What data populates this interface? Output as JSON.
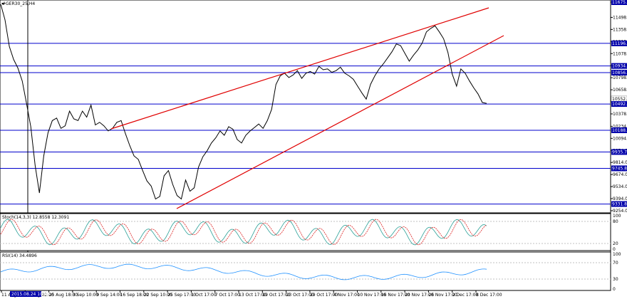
{
  "window": {
    "symbol_label": "#GER30_25,H4"
  },
  "indicators": {
    "stoch_label": "Stoch(14,3,3) 12.8558 12.3091",
    "stoch_levels": [
      "100",
      "80",
      "20",
      "0"
    ],
    "rsi_label": "RSI(14) 34.4896",
    "rsi_levels": [
      "100",
      "70",
      "30",
      "0"
    ]
  },
  "crosshair": {
    "time_label": "2015.08.24 10:00"
  },
  "price_axis": {
    "ticks": [
      "11675.0",
      "11498.0",
      "11358.0",
      "11218.0",
      "11078.0",
      "10938.0",
      "10798.0",
      "10658.0",
      "10518.0",
      "10378.0",
      "10234.0",
      "10094.0",
      "9954.0",
      "9814.0",
      "9674.0",
      "9534.0",
      "9394.0",
      "9254.0"
    ],
    "level_tags": [
      {
        "text": "11675.0",
        "price": 11675.0
      },
      {
        "text": "11196.6",
        "price": 11196.6
      },
      {
        "text": "10934.4",
        "price": 10934.4
      },
      {
        "text": "10856.7",
        "price": 10856.7
      },
      {
        "text": "10552.5",
        "price": 10552.5
      },
      {
        "text": "10492.7",
        "price": 10492.7
      },
      {
        "text": "10188.2",
        "price": 10188.2
      },
      {
        "text": "9935.7",
        "price": 9935.7
      },
      {
        "text": "9745.8",
        "price": 9745.8
      },
      {
        "text": "9331.8",
        "price": 9331.8
      }
    ]
  },
  "time_axis": {
    "ticks": [
      "11 Aug 2015",
      "19 Aug 02:00",
      "25 Aug 18:00",
      "3 Sep 10:00",
      "9 Sep 14:00",
      "16 Sep 18:00",
      "22 Sep 10:00",
      "25 Sep 17:00",
      "1 Oct 17:00",
      "7 Oct 17:00",
      "13 Oct 17:00",
      "19 Oct 17:00",
      "23 Oct 17:00",
      "29 Oct 17:00",
      "4 Nov 17:00",
      "10 Nov 17:00",
      "16 Nov 17:00",
      "20 Nov 17:00",
      "26 Nov 17:00",
      "2 Dec 17:00",
      "8 Dec 17:00"
    ]
  },
  "chart_data": {
    "type": "line",
    "series": [
      {
        "values": [
          11650,
          11470,
          11160,
          11010,
          10910,
          10760,
          10500,
          10230,
          9780,
          9460,
          9890,
          10160,
          10300,
          10330,
          10210,
          10240,
          10410,
          10320,
          10300,
          10410,
          10340,
          10480,
          10250,
          10280,
          10240,
          10180,
          10210,
          10280,
          10300,
          10150,
          10010,
          9890,
          9850,
          9720,
          9600,
          9540,
          9390,
          9420,
          9660,
          9720,
          9560,
          9430,
          9390,
          9610,
          9480,
          9520,
          9760,
          9880,
          9950,
          10040,
          10100,
          10180,
          10130,
          10230,
          10200,
          10080,
          10040,
          10130,
          10180,
          10220,
          10260,
          10210,
          10300,
          10430,
          10720,
          10820,
          10850,
          10800,
          10830,
          10880,
          10790,
          10850,
          10870,
          10840,
          10930,
          10890,
          10900,
          10860,
          10880,
          10920,
          10850,
          10820,
          10780,
          10700,
          10620,
          10550,
          10720,
          10820,
          10900,
          10960,
          11030,
          11100,
          11190,
          11170,
          11080,
          10990,
          11060,
          11120,
          11200,
          11330,
          11370,
          11400,
          11330,
          11250,
          11090,
          10840,
          10700,
          10900,
          10850,
          10760,
          10680,
          10610,
          10510,
          10500
        ]
      }
    ],
    "xlabel": "",
    "ylabel": "",
    "ylim": [
      9254,
      11675
    ],
    "grid": false
  }
}
